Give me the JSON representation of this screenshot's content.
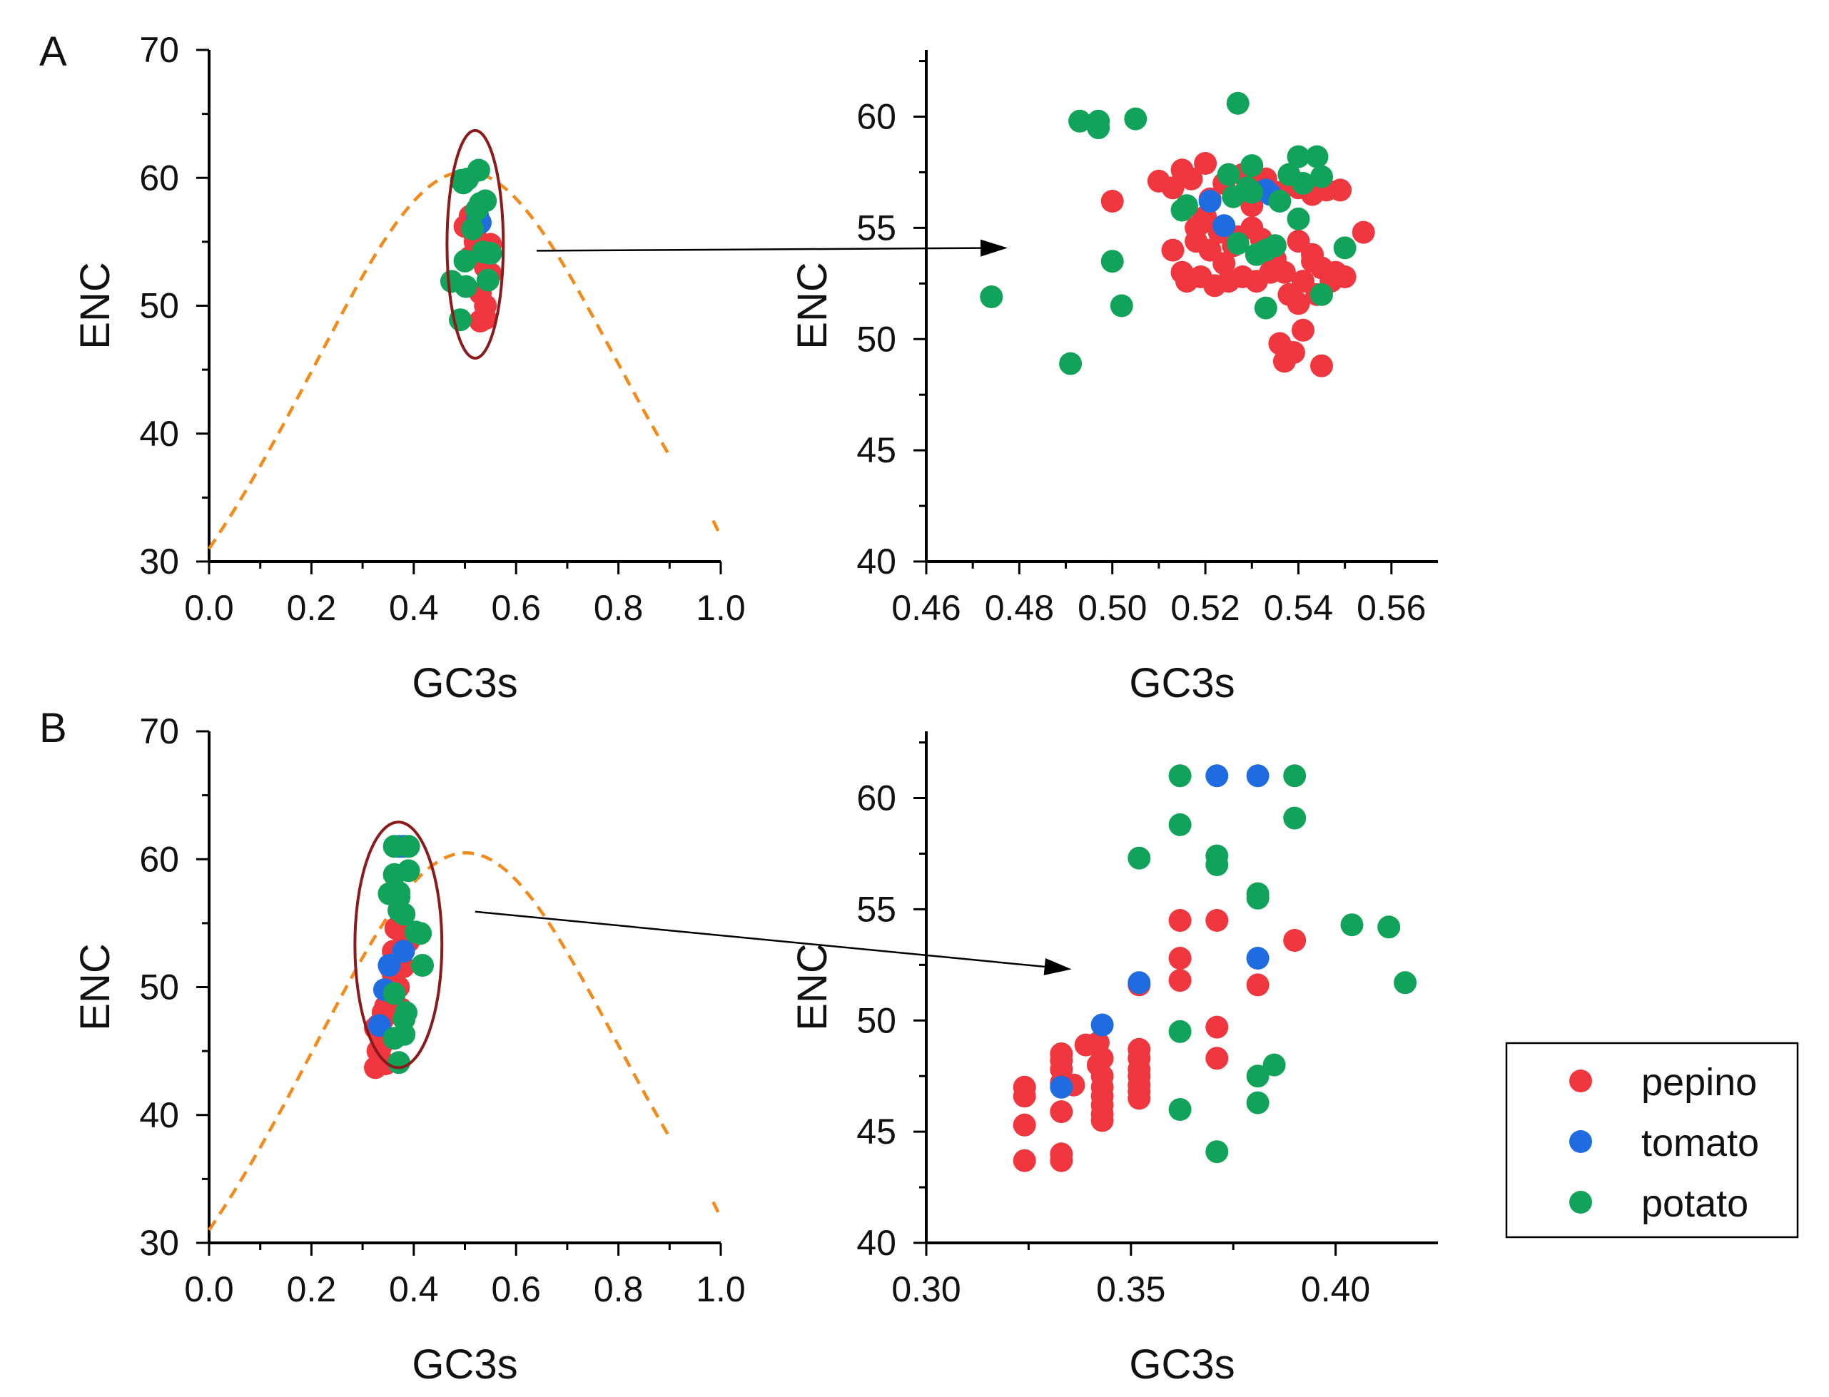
{
  "figure": {
    "legend": [
      {
        "name": "pepino",
        "color": "#f0363f"
      },
      {
        "name": "tomato",
        "color": "#1f6ce0"
      },
      {
        "name": "potato",
        "color": "#12a35a"
      }
    ],
    "fit_curve_color": "#f28a1c",
    "ellipse_color": "#8b1a1a"
  },
  "chart_data": [
    {
      "id": "A-full",
      "panel_label": "A",
      "type": "scatter",
      "xlabel": "GC3s",
      "ylabel": "ENC",
      "xlim": [
        0,
        1
      ],
      "ylim": [
        30,
        70
      ],
      "xticks": [
        0,
        0.2,
        0.4,
        0.6,
        0.8,
        1.0
      ],
      "xtick_labels": [
        "0.0",
        "0.2",
        "0.4",
        "0.6",
        "0.8",
        "1.0"
      ],
      "yticks": [
        30,
        40,
        50,
        60,
        70
      ],
      "ytick_labels": [
        "30",
        "40",
        "50",
        "60",
        "70"
      ],
      "expected_curve": true,
      "highlight_ellipse": {
        "cx": 0.52,
        "cy": 54.8,
        "rx": 0.055,
        "ry": 8.9
      },
      "zoom_arrow": {
        "from": [
          0.64,
          54.3
        ],
        "to_panel": "A-zoom",
        "to": [
          0.4775,
          54.1
        ]
      },
      "series": [
        {
          "name": "pepino",
          "x": [
            0.5,
            0.51,
            0.52,
            0.53,
            0.54,
            0.55,
            0.53,
            0.54,
            0.52,
            0.55,
            0.51,
            0.54,
            0.53,
            0.545
          ],
          "y": [
            56.2,
            57.0,
            55.0,
            54.0,
            53.0,
            52.5,
            51.0,
            50.0,
            55.5,
            54.8,
            53.8,
            49.0,
            48.8,
            52.0
          ]
        },
        {
          "name": "tomato",
          "x": [
            0.53,
            0.525
          ],
          "y": [
            56.5,
            57.0
          ]
        },
        {
          "name": "potato",
          "x": [
            0.474,
            0.491,
            0.493,
            0.497,
            0.5,
            0.502,
            0.505,
            0.515,
            0.523,
            0.527,
            0.53,
            0.535,
            0.54,
            0.545,
            0.55
          ],
          "y": [
            51.9,
            48.9,
            59.8,
            59.6,
            53.5,
            51.5,
            59.9,
            56.0,
            57.5,
            60.6,
            58.0,
            54.2,
            58.2,
            52.0,
            54.1
          ]
        }
      ]
    },
    {
      "id": "A-zoom",
      "type": "scatter",
      "xlabel": "GC3s",
      "ylabel": "ENC",
      "xlim": [
        0.46,
        0.57
      ],
      "ylim": [
        40,
        63
      ],
      "xticks": [
        0.46,
        0.48,
        0.5,
        0.52,
        0.54,
        0.56
      ],
      "xtick_labels": [
        "0.46",
        "0.48",
        "0.50",
        "0.52",
        "0.54",
        "0.56"
      ],
      "yticks": [
        40,
        45,
        50,
        55,
        60
      ],
      "ytick_labels": [
        "40",
        "45",
        "50",
        "55",
        "60"
      ],
      "series": [
        {
          "name": "pepino",
          "x": [
            0.5,
            0.51,
            0.513,
            0.515,
            0.517,
            0.52,
            0.521,
            0.524,
            0.528,
            0.531,
            0.533,
            0.536,
            0.54,
            0.543,
            0.546,
            0.549,
            0.554,
            0.513,
            0.515,
            0.518,
            0.521,
            0.524,
            0.527,
            0.53,
            0.534,
            0.537,
            0.54,
            0.543,
            0.545,
            0.55,
            0.516,
            0.519,
            0.522,
            0.525,
            0.528,
            0.531,
            0.534,
            0.538,
            0.541,
            0.544,
            0.547,
            0.536,
            0.539,
            0.541,
            0.537,
            0.545,
            0.519,
            0.523,
            0.532,
            0.518,
            0.526,
            0.535,
            0.543,
            0.548,
            0.52,
            0.53,
            0.54
          ],
          "y": [
            56.2,
            57.1,
            56.8,
            57.6,
            57.2,
            57.9,
            56.3,
            57.0,
            57.4,
            56.9,
            57.2,
            56.6,
            56.8,
            56.5,
            56.7,
            56.7,
            54.8,
            54.0,
            53.0,
            54.4,
            54.0,
            53.4,
            54.6,
            55.0,
            54.0,
            53.0,
            54.4,
            53.8,
            53.2,
            52.8,
            52.6,
            52.8,
            52.4,
            52.6,
            52.8,
            52.6,
            53.0,
            52.0,
            52.6,
            52.0,
            52.6,
            49.8,
            49.4,
            50.4,
            49.0,
            48.8,
            55.2,
            54.8,
            54.5,
            55.0,
            54.2,
            53.6,
            53.5,
            53.0,
            55.5,
            56.0,
            51.6
          ]
        },
        {
          "name": "tomato",
          "x": [
            0.521,
            0.524,
            0.533,
            0.534
          ],
          "y": [
            56.2,
            55.1,
            56.7,
            56.5
          ]
        },
        {
          "name": "potato",
          "x": [
            0.474,
            0.491,
            0.493,
            0.497,
            0.497,
            0.5,
            0.502,
            0.505,
            0.515,
            0.516,
            0.525,
            0.527,
            0.529,
            0.53,
            0.531,
            0.533,
            0.535,
            0.536,
            0.538,
            0.54,
            0.54,
            0.541,
            0.544,
            0.545,
            0.545,
            0.55,
            0.527,
            0.53,
            0.533,
            0.526
          ],
          "y": [
            51.9,
            48.9,
            59.8,
            59.8,
            59.5,
            53.5,
            51.5,
            59.9,
            55.8,
            56.0,
            57.4,
            60.6,
            56.8,
            57.8,
            53.8,
            51.4,
            54.2,
            56.2,
            57.4,
            58.2,
            55.4,
            57.0,
            58.2,
            57.3,
            52.0,
            54.1,
            54.3,
            56.6,
            54.0,
            56.4
          ]
        }
      ]
    },
    {
      "id": "B-full",
      "panel_label": "B",
      "type": "scatter",
      "xlabel": "GC3s",
      "ylabel": "ENC",
      "xlim": [
        0,
        1
      ],
      "ylim": [
        30,
        70
      ],
      "xticks": [
        0,
        0.2,
        0.4,
        0.6,
        0.8,
        1.0
      ],
      "xtick_labels": [
        "0.0",
        "0.2",
        "0.4",
        "0.6",
        "0.8",
        "1.0"
      ],
      "yticks": [
        30,
        40,
        50,
        60,
        70
      ],
      "ytick_labels": [
        "30",
        "40",
        "50",
        "60",
        "70"
      ],
      "expected_curve": true,
      "highlight_ellipse": {
        "cx": 0.37,
        "cy": 53.3,
        "rx": 0.085,
        "ry": 9.6
      },
      "zoom_arrow": {
        "from": [
          0.52,
          55.9
        ],
        "to_panel": "B-zoom",
        "to": [
          0.3355,
          52.3
        ]
      },
      "series": [
        {
          "name": "pepino",
          "x": [
            0.325,
            0.33,
            0.335,
            0.34,
            0.345,
            0.35,
            0.355,
            0.36,
            0.365,
            0.37,
            0.38,
            0.39,
            0.33,
            0.34,
            0.35,
            0.36,
            0.37,
            0.375,
            0.325,
            0.335,
            0.345,
            0.355
          ],
          "y": [
            43.7,
            45.0,
            46.5,
            47.5,
            48.5,
            49.5,
            51.5,
            52.8,
            54.6,
            54.5,
            51.6,
            53.6,
            47.0,
            48.0,
            49.7,
            51.0,
            50.0,
            48.3,
            46.8,
            45.3,
            44.0,
            46.0
          ]
        },
        {
          "name": "tomato",
          "x": [
            0.333,
            0.343,
            0.352,
            0.371,
            0.38,
            0.381
          ],
          "y": [
            47.0,
            49.8,
            51.7,
            61.0,
            52.8,
            61.0
          ]
        },
        {
          "name": "potato",
          "x": [
            0.362,
            0.362,
            0.371,
            0.371,
            0.381,
            0.39,
            0.39,
            0.404,
            0.413,
            0.417,
            0.352,
            0.362,
            0.371,
            0.381,
            0.385,
            0.362,
            0.371,
            0.381
          ],
          "y": [
            61.0,
            58.8,
            57.4,
            57.0,
            55.7,
            61.0,
            59.1,
            54.3,
            54.2,
            51.7,
            57.3,
            49.5,
            44.1,
            47.5,
            48.0,
            46.0,
            56.0,
            46.3
          ]
        }
      ]
    },
    {
      "id": "B-zoom",
      "type": "scatter",
      "xlabel": "GC3s",
      "ylabel": "ENC",
      "xlim": [
        0.3,
        0.425
      ],
      "ylim": [
        40,
        63
      ],
      "xticks": [
        0.3,
        0.35,
        0.4
      ],
      "xtick_labels": [
        "0.30",
        "0.35",
        "0.40"
      ],
      "yticks": [
        40,
        45,
        50,
        55,
        60
      ],
      "ytick_labels": [
        "40",
        "45",
        "50",
        "55",
        "60"
      ],
      "series": [
        {
          "name": "pepino",
          "x": [
            0.324,
            0.324,
            0.324,
            0.324,
            0.333,
            0.333,
            0.333,
            0.333,
            0.333,
            0.333,
            0.333,
            0.336,
            0.339,
            0.342,
            0.342,
            0.343,
            0.343,
            0.343,
            0.343,
            0.343,
            0.343,
            0.343,
            0.352,
            0.352,
            0.352,
            0.352,
            0.352,
            0.352,
            0.352,
            0.352,
            0.362,
            0.362,
            0.362,
            0.371,
            0.371,
            0.371,
            0.381,
            0.39
          ],
          "y": [
            47.0,
            46.6,
            45.3,
            43.7,
            48.5,
            48.2,
            47.8,
            47.2,
            45.9,
            44.0,
            43.7,
            47.1,
            48.9,
            48.0,
            49.0,
            48.3,
            47.5,
            47.0,
            46.6,
            46.2,
            45.8,
            45.5,
            51.6,
            48.7,
            48.3,
            47.8,
            47.5,
            47.1,
            46.8,
            46.5,
            54.5,
            52.8,
            51.8,
            54.5,
            49.7,
            48.3,
            51.6,
            53.6
          ]
        },
        {
          "name": "tomato",
          "x": [
            0.333,
            0.343,
            0.352,
            0.371,
            0.381,
            0.381
          ],
          "y": [
            47.0,
            49.8,
            51.7,
            61.0,
            61.0,
            52.8
          ]
        },
        {
          "name": "potato",
          "x": [
            0.352,
            0.362,
            0.362,
            0.362,
            0.362,
            0.371,
            0.371,
            0.371,
            0.381,
            0.381,
            0.381,
            0.381,
            0.385,
            0.39,
            0.39,
            0.404,
            0.413,
            0.417
          ],
          "y": [
            57.3,
            61.0,
            58.8,
            49.5,
            46.0,
            57.4,
            57.0,
            44.1,
            55.7,
            55.5,
            47.5,
            46.3,
            48.0,
            61.0,
            59.1,
            54.3,
            54.2,
            51.7
          ]
        }
      ]
    }
  ]
}
